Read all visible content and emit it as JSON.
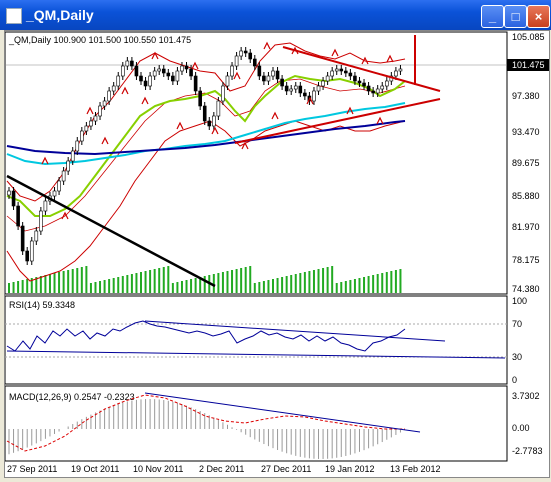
{
  "window": {
    "title": "_QM,Daily",
    "minimize": "_",
    "maximize": "□",
    "close": "×"
  },
  "main_panel": {
    "info": "_QM,Daily  100.900 101.500 100.550 101.475",
    "current_price": "101.475",
    "y_ticks": [
      "105.085",
      "101.475",
      "97.380",
      "93.470",
      "89.675",
      "85.880",
      "81.970",
      "78.175",
      "74.380"
    ]
  },
  "rsi_panel": {
    "label": "RSI(14) 59.3348",
    "y_ticks": [
      "100",
      "70",
      "30",
      "0"
    ]
  },
  "macd_panel": {
    "label": "MACD(12,26,9) 0.2547 -0.2323",
    "y_ticks": [
      "3.7302",
      "0.00",
      "-2.7783"
    ]
  },
  "x_axis": {
    "dates": [
      "27 Sep 2011",
      "19 Oct 2011",
      "10 Nov 2011",
      "2 Dec 2011",
      "27 Dec 2011",
      "19 Jan 2012",
      "13 Feb 2012"
    ]
  },
  "colors": {
    "candles": "#000000",
    "bollinger": "#cc0000",
    "ma_fast": "#88d000",
    "ma_mid": "#00c8e0",
    "ma_slow": "#000099",
    "trendline": "#cc0000",
    "volume": "#22aa22",
    "rsi_line": "#000099",
    "macd_hist": "#999999",
    "macd_signal": "#dd0000"
  }
}
